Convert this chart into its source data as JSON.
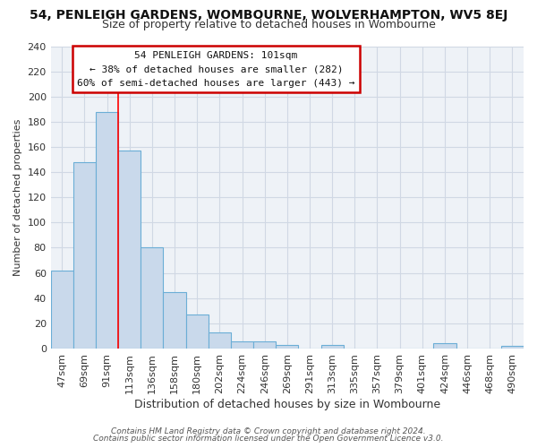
{
  "title_line1": "54, PENLEIGH GARDENS, WOMBOURNE, WOLVERHAMPTON, WV5 8EJ",
  "title_line2": "Size of property relative to detached houses in Wombourne",
  "xlabel": "Distribution of detached houses by size in Wombourne",
  "ylabel": "Number of detached properties",
  "footer_line1": "Contains HM Land Registry data © Crown copyright and database right 2024.",
  "footer_line2": "Contains public sector information licensed under the Open Government Licence v3.0.",
  "bar_labels": [
    "47sqm",
    "69sqm",
    "91sqm",
    "113sqm",
    "136sqm",
    "158sqm",
    "180sqm",
    "202sqm",
    "224sqm",
    "246sqm",
    "269sqm",
    "291sqm",
    "313sqm",
    "335sqm",
    "357sqm",
    "379sqm",
    "401sqm",
    "424sqm",
    "446sqm",
    "468sqm",
    "490sqm"
  ],
  "bar_values": [
    62,
    148,
    188,
    157,
    80,
    45,
    27,
    13,
    6,
    6,
    3,
    0,
    3,
    0,
    0,
    0,
    0,
    4,
    0,
    0,
    2
  ],
  "bar_color": "#c9d9eb",
  "bar_edge_color": "#6baed6",
  "red_line_x": 2.5,
  "ylim": [
    0,
    240
  ],
  "yticks": [
    0,
    20,
    40,
    60,
    80,
    100,
    120,
    140,
    160,
    180,
    200,
    220,
    240
  ],
  "annotation_title": "54 PENLEIGH GARDENS: 101sqm",
  "annotation_line1": "← 38% of detached houses are smaller (282)",
  "annotation_line2": "60% of semi-detached houses are larger (443) →",
  "annotation_box_color": "#ffffff",
  "annotation_border_color": "#cc0000",
  "bg_color": "#ffffff",
  "plot_bg_color": "#eef2f7",
  "grid_color": "#d0d8e4",
  "title1_fontsize": 10,
  "title2_fontsize": 9,
  "xlabel_fontsize": 9,
  "ylabel_fontsize": 8,
  "tick_fontsize": 8,
  "footer_fontsize": 6.5
}
